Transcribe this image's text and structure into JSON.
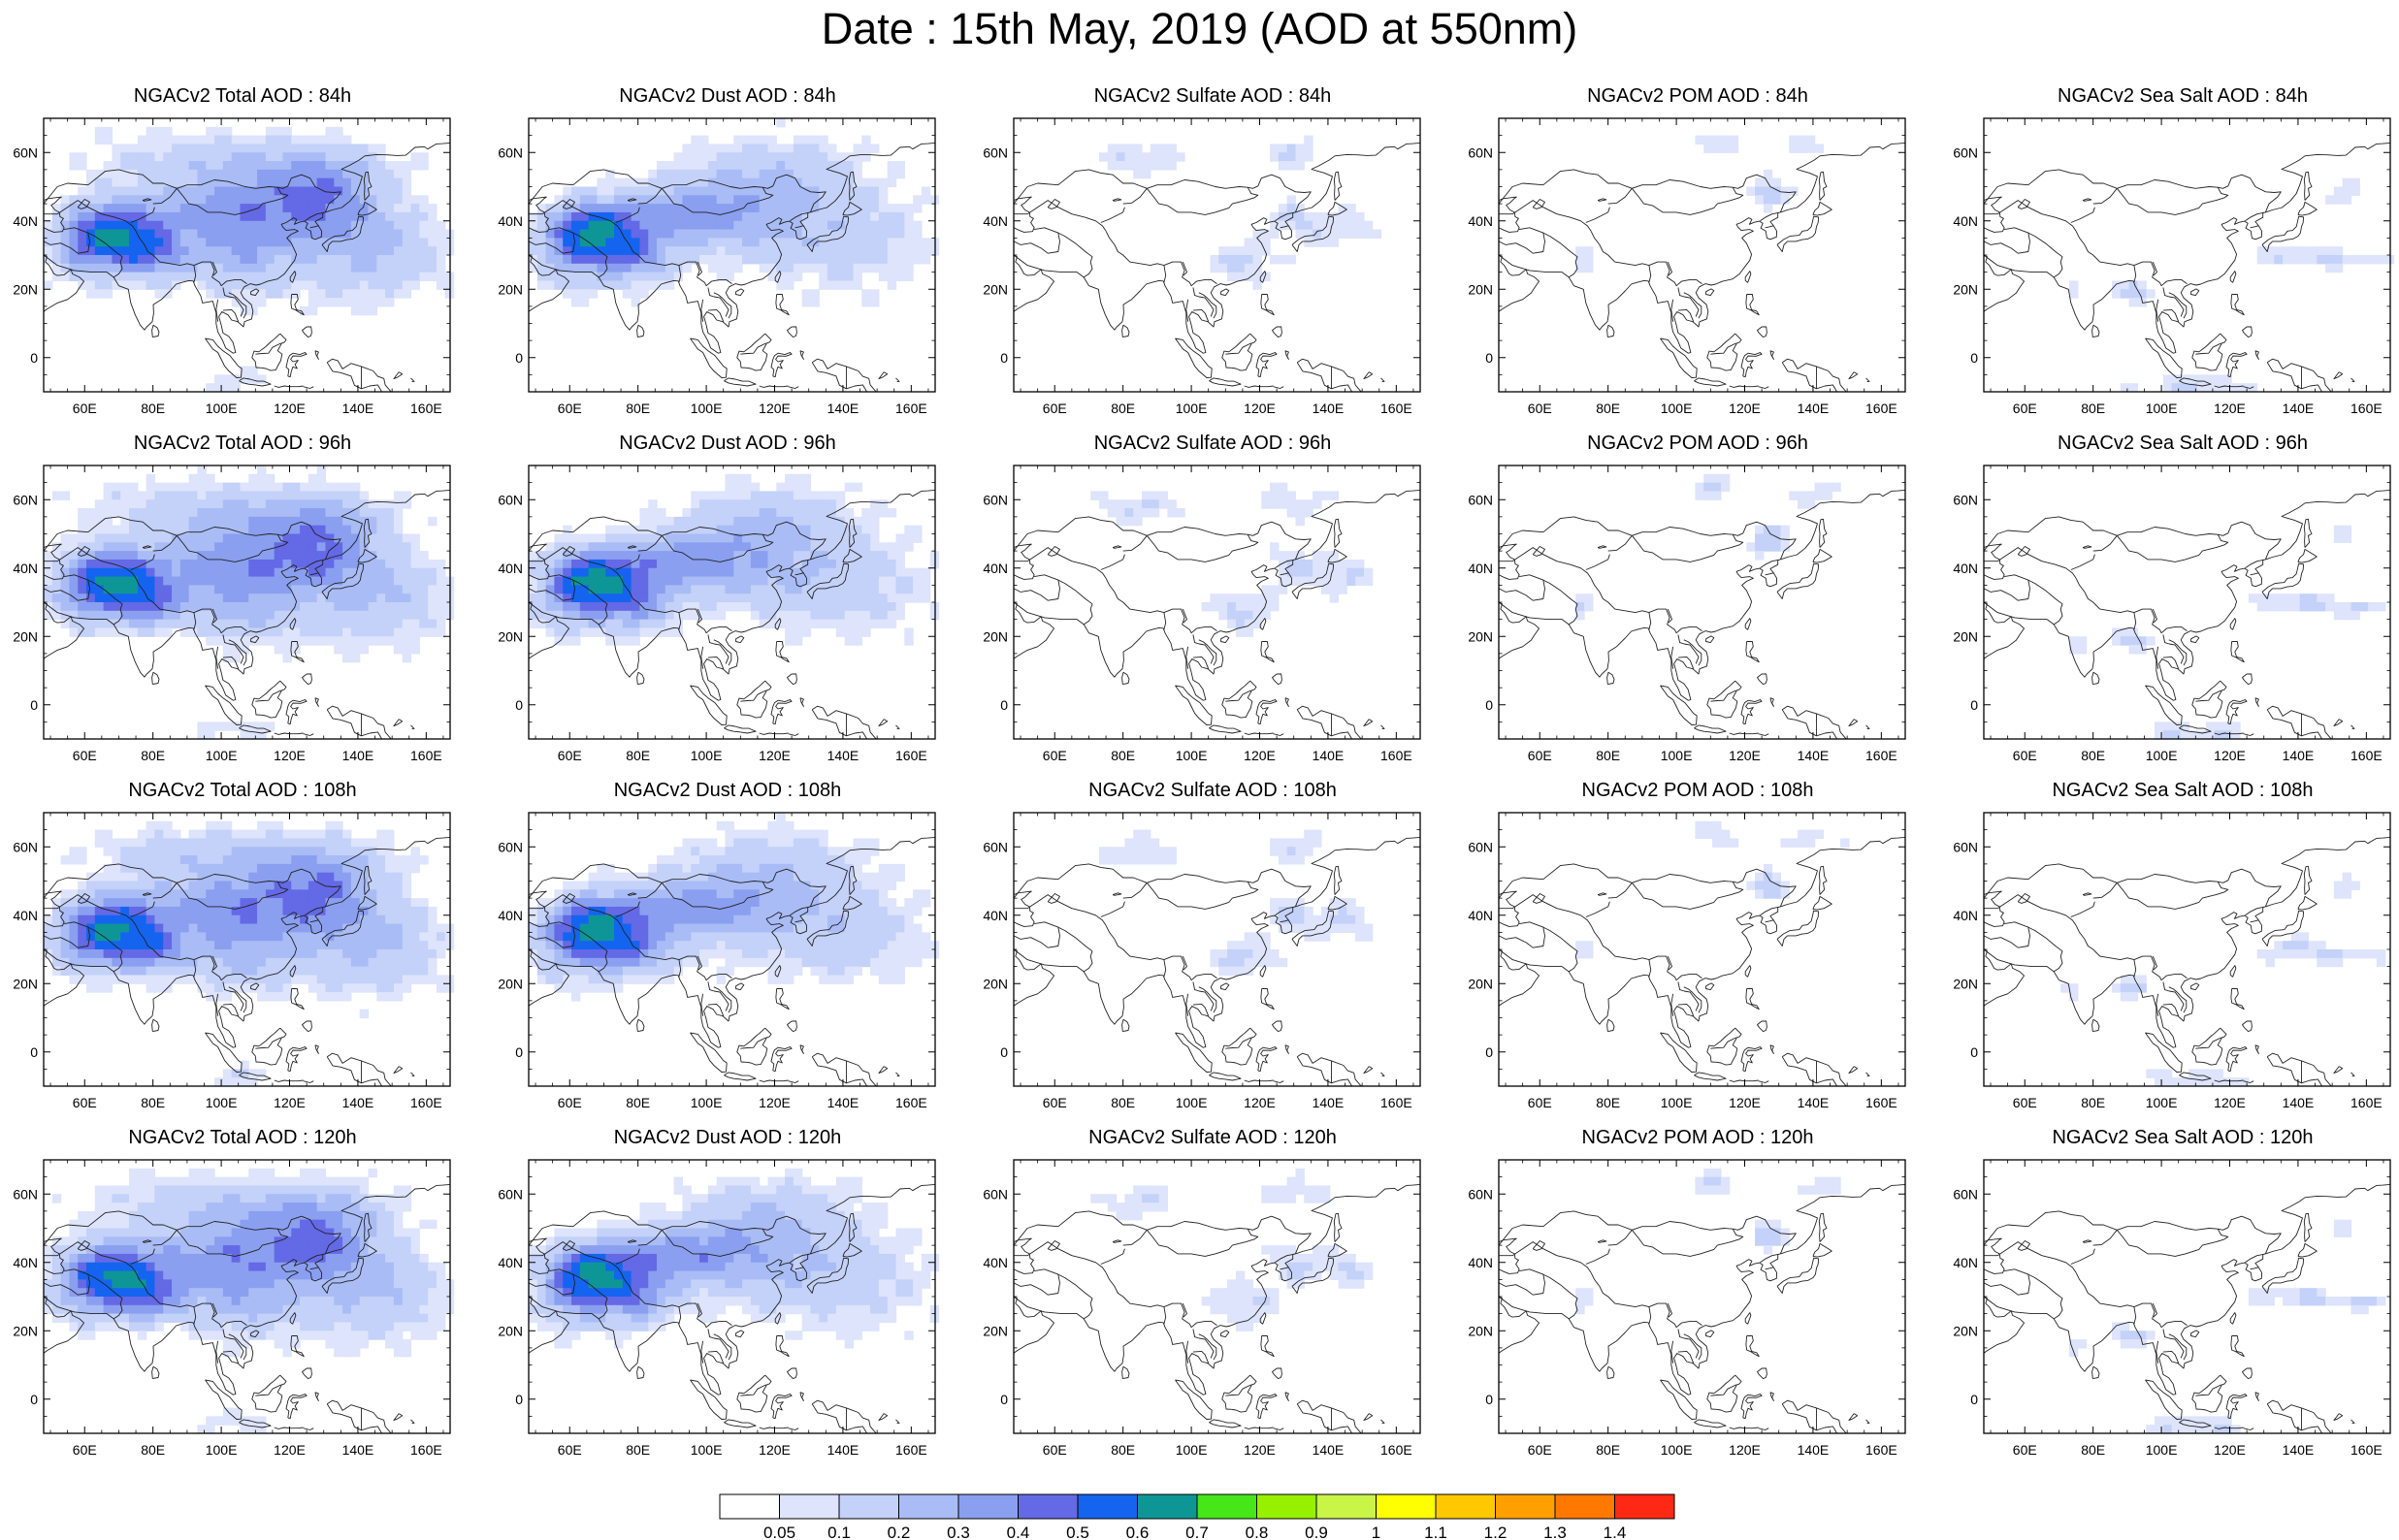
{
  "figure": {
    "title": "Date : 15th May, 2019 (AOD at 550nm)"
  },
  "axes": {
    "x_ticks": [
      "60E",
      "80E",
      "100E",
      "120E",
      "140E",
      "160E"
    ],
    "x_values": [
      60,
      80,
      100,
      120,
      140,
      160
    ],
    "y_ticks": [
      "60N",
      "40N",
      "20N",
      "0"
    ],
    "y_values": [
      60,
      40,
      20,
      0
    ],
    "lon_range": [
      48,
      167
    ],
    "lat_range": [
      -10,
      70
    ]
  },
  "panels": [
    {
      "title": "NGACv2 Total AOD : 84h",
      "species": "total",
      "hour": 84
    },
    {
      "title": "NGACv2 Dust AOD : 84h",
      "species": "dust",
      "hour": 84
    },
    {
      "title": "NGACv2 Sulfate AOD : 84h",
      "species": "sulfate",
      "hour": 84
    },
    {
      "title": "NGACv2 POM AOD : 84h",
      "species": "pom",
      "hour": 84
    },
    {
      "title": "NGACv2 Sea Salt AOD : 84h",
      "species": "seasalt",
      "hour": 84
    },
    {
      "title": "NGACv2 Total AOD : 96h",
      "species": "total",
      "hour": 96
    },
    {
      "title": "NGACv2 Dust AOD : 96h",
      "species": "dust",
      "hour": 96
    },
    {
      "title": "NGACv2 Sulfate AOD : 96h",
      "species": "sulfate",
      "hour": 96
    },
    {
      "title": "NGACv2 POM AOD : 96h",
      "species": "pom",
      "hour": 96
    },
    {
      "title": "NGACv2 Sea Salt AOD : 96h",
      "species": "seasalt",
      "hour": 96
    },
    {
      "title": "NGACv2 Total AOD : 108h",
      "species": "total",
      "hour": 108
    },
    {
      "title": "NGACv2 Dust AOD : 108h",
      "species": "dust",
      "hour": 108
    },
    {
      "title": "NGACv2 Sulfate AOD : 108h",
      "species": "sulfate",
      "hour": 108
    },
    {
      "title": "NGACv2 POM AOD : 108h",
      "species": "pom",
      "hour": 108
    },
    {
      "title": "NGACv2 Sea Salt AOD : 108h",
      "species": "seasalt",
      "hour": 108
    },
    {
      "title": "NGACv2 Total AOD : 120h",
      "species": "total",
      "hour": 120
    },
    {
      "title": "NGACv2 Dust AOD : 120h",
      "species": "dust",
      "hour": 120
    },
    {
      "title": "NGACv2 Sulfate AOD : 120h",
      "species": "sulfate",
      "hour": 120
    },
    {
      "title": "NGACv2 POM AOD : 120h",
      "species": "pom",
      "hour": 120
    },
    {
      "title": "NGACv2 Sea Salt  AOD : 120h",
      "species": "seasalt",
      "hour": 120
    }
  ],
  "colorbar": {
    "labels": [
      "0.05",
      "0.1",
      "0.2",
      "0.3",
      "0.4",
      "0.5",
      "0.6",
      "0.7",
      "0.8",
      "0.9",
      "1",
      "1.1",
      "1.2",
      "1.3",
      "1.4"
    ],
    "colors": [
      "#ffffff",
      "#dde4fb",
      "#c4d1f8",
      "#a9bcf5",
      "#8a9ff0",
      "#6469e6",
      "#1464f0",
      "#0e9696",
      "#46e618",
      "#96f000",
      "#c8f546",
      "#ffff00",
      "#ffc800",
      "#ffa000",
      "#ff7800",
      "#ff2814"
    ]
  }
}
